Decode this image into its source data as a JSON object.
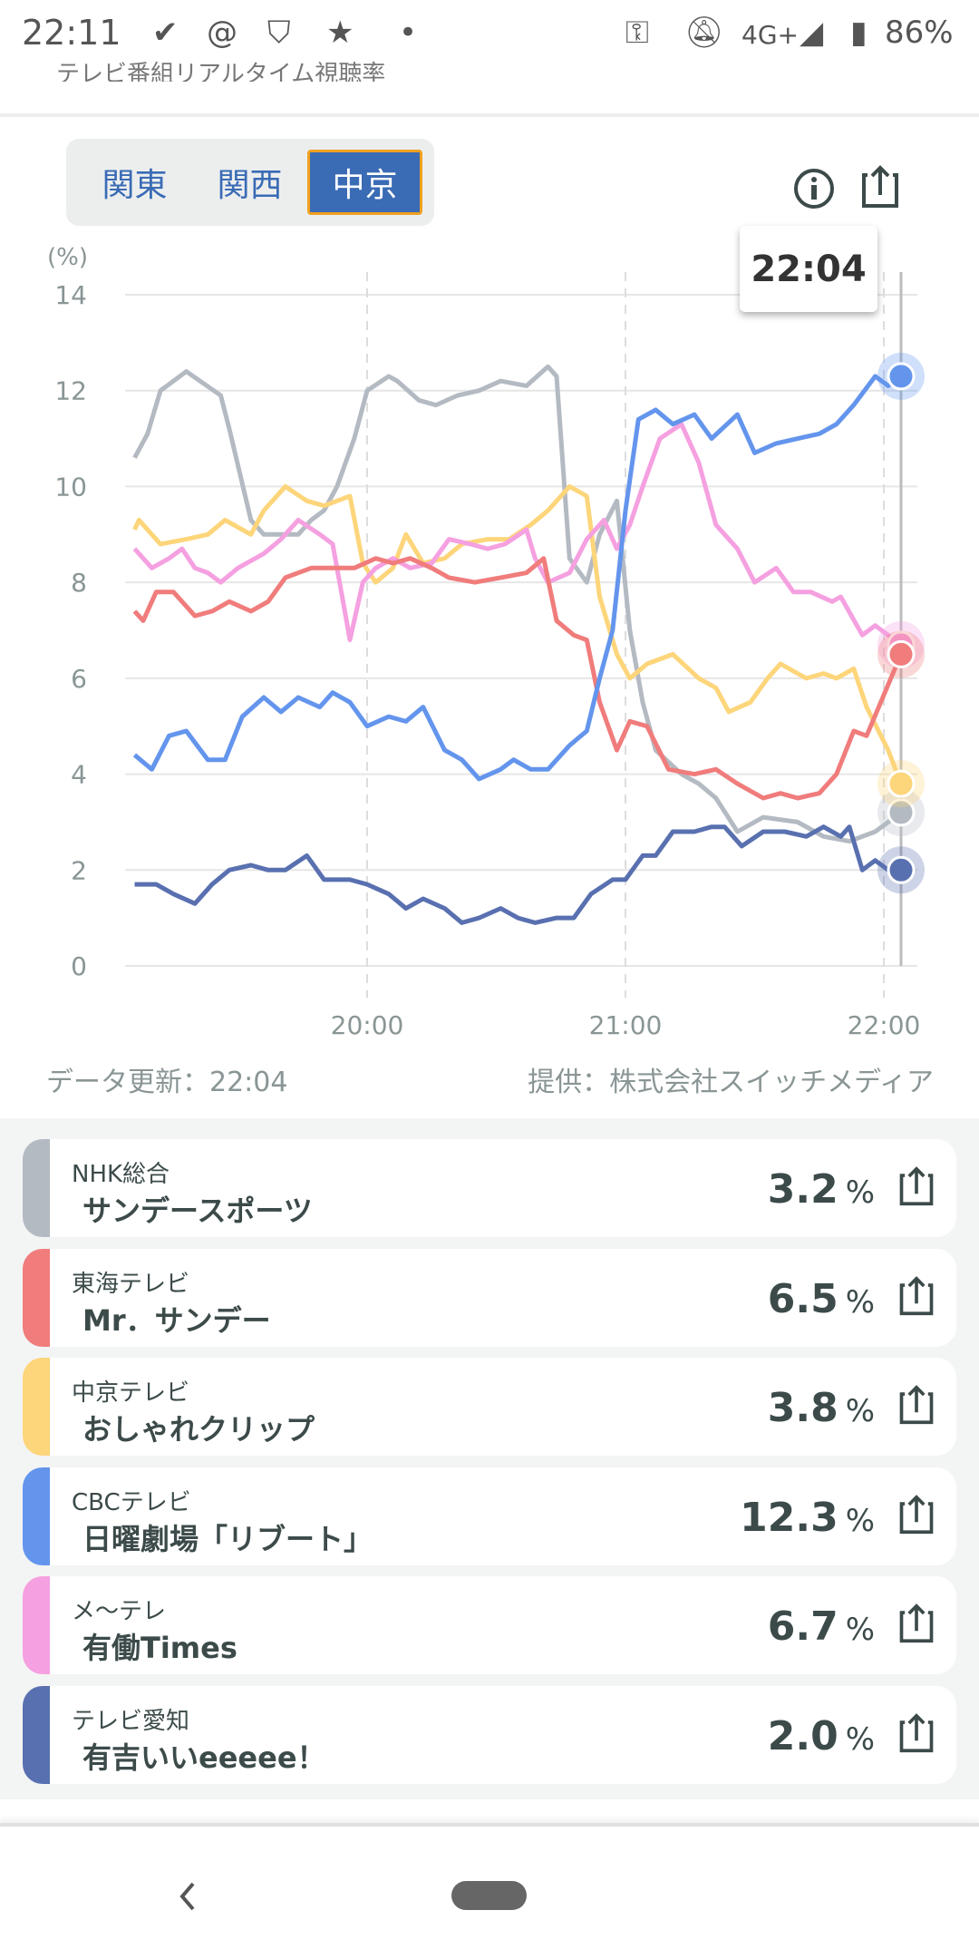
{
  "status_bar": {
    "time": "22:11",
    "network": "4G+",
    "battery": "86%"
  },
  "app": {
    "title": "テレビ番組リアルタイム視聴率"
  },
  "regions": [
    {
      "label": "関東",
      "active": false
    },
    {
      "label": "関西",
      "active": false
    },
    {
      "label": "中京",
      "active": true
    }
  ],
  "tooltip": {
    "time": "22:04"
  },
  "footer": {
    "updated": "データ更新：22:04",
    "provider": "提供：株式会社スイッチメディア"
  },
  "chart_data": {
    "type": "line",
    "ylabel": "(%)",
    "ylim": [
      0,
      14
    ],
    "yticks": [
      "0",
      "2",
      "4",
      "6",
      "8",
      "10",
      "12",
      "14"
    ],
    "x_unit": "minutes since 19:00",
    "xticks": [
      {
        "t": 60,
        "label": "20:00"
      },
      {
        "t": 120,
        "label": "21:00"
      },
      {
        "t": 180,
        "label": "22:00"
      }
    ],
    "cursor_t": 184,
    "grid": true,
    "series": [
      {
        "name": "NHK総合",
        "color": "#b4bac2",
        "points": [
          [
            6,
            10.6
          ],
          [
            9,
            11.1
          ],
          [
            12,
            12.0
          ],
          [
            18,
            12.4
          ],
          [
            26,
            11.9
          ],
          [
            28,
            11.2
          ],
          [
            33,
            9.3
          ],
          [
            36,
            9.0
          ],
          [
            44,
            9.0
          ],
          [
            47,
            9.3
          ],
          [
            50,
            9.5
          ],
          [
            53,
            10.0
          ],
          [
            57,
            11.0
          ],
          [
            60,
            12.0
          ],
          [
            65,
            12.3
          ],
          [
            67,
            12.2
          ],
          [
            72,
            11.8
          ],
          [
            76,
            11.7
          ],
          [
            81,
            11.9
          ],
          [
            86,
            12.0
          ],
          [
            91,
            12.2
          ],
          [
            97,
            12.1
          ],
          [
            102,
            12.5
          ],
          [
            104,
            12.3
          ],
          [
            107,
            8.5
          ],
          [
            111,
            8.0
          ],
          [
            114,
            9.0
          ],
          [
            118,
            9.7
          ],
          [
            121,
            7.0
          ],
          [
            124,
            5.5
          ],
          [
            127,
            4.5
          ],
          [
            133,
            4.0
          ],
          [
            137,
            3.8
          ],
          [
            141,
            3.5
          ],
          [
            146,
            2.8
          ],
          [
            152,
            3.1
          ],
          [
            160,
            3.0
          ],
          [
            166,
            2.7
          ],
          [
            172,
            2.6
          ],
          [
            178,
            2.8
          ],
          [
            184,
            3.2
          ]
        ]
      },
      {
        "name": "中京テレビ",
        "color": "#fdd57a",
        "points": [
          [
            6,
            9.1
          ],
          [
            7,
            9.3
          ],
          [
            12,
            8.8
          ],
          [
            18,
            8.9
          ],
          [
            23,
            9.0
          ],
          [
            27,
            9.3
          ],
          [
            33,
            9.0
          ],
          [
            36,
            9.5
          ],
          [
            41,
            10.0
          ],
          [
            46,
            9.7
          ],
          [
            50,
            9.6
          ],
          [
            56,
            9.8
          ],
          [
            59,
            8.4
          ],
          [
            62,
            8.0
          ],
          [
            66,
            8.3
          ],
          [
            69,
            9.0
          ],
          [
            73,
            8.4
          ],
          [
            78,
            8.5
          ],
          [
            82,
            8.8
          ],
          [
            88,
            8.9
          ],
          [
            93,
            8.9
          ],
          [
            98,
            9.2
          ],
          [
            102,
            9.5
          ],
          [
            107,
            10.0
          ],
          [
            111,
            9.8
          ],
          [
            114,
            7.7
          ],
          [
            118,
            6.5
          ],
          [
            121,
            6.0
          ],
          [
            125,
            6.3
          ],
          [
            131,
            6.5
          ],
          [
            137,
            6.0
          ],
          [
            141,
            5.8
          ],
          [
            144,
            5.3
          ],
          [
            149,
            5.5
          ],
          [
            153,
            6.0
          ],
          [
            156,
            6.3
          ],
          [
            162,
            6.0
          ],
          [
            166,
            6.1
          ],
          [
            169,
            6.0
          ],
          [
            173,
            6.2
          ],
          [
            176,
            5.4
          ],
          [
            181,
            4.5
          ],
          [
            184,
            3.8
          ]
        ]
      },
      {
        "name": "メ〜テレ",
        "color": "#f5a0e0",
        "points": [
          [
            6,
            8.7
          ],
          [
            10,
            8.3
          ],
          [
            14,
            8.5
          ],
          [
            17,
            8.7
          ],
          [
            20,
            8.3
          ],
          [
            23,
            8.2
          ],
          [
            26,
            8.0
          ],
          [
            30,
            8.3
          ],
          [
            36,
            8.6
          ],
          [
            40,
            8.9
          ],
          [
            44,
            9.3
          ],
          [
            49,
            9.0
          ],
          [
            52,
            8.8
          ],
          [
            55,
            7.3
          ],
          [
            56,
            6.8
          ],
          [
            59,
            8.0
          ],
          [
            62,
            8.3
          ],
          [
            66,
            8.5
          ],
          [
            70,
            8.3
          ],
          [
            75,
            8.4
          ],
          [
            79,
            8.9
          ],
          [
            84,
            8.8
          ],
          [
            88,
            8.7
          ],
          [
            92,
            8.8
          ],
          [
            97,
            9.1
          ],
          [
            99,
            8.5
          ],
          [
            102,
            8.0
          ],
          [
            107,
            8.2
          ],
          [
            111,
            8.9
          ],
          [
            115,
            9.3
          ],
          [
            118,
            8.7
          ],
          [
            121,
            9.2
          ],
          [
            124,
            10.0
          ],
          [
            128,
            11.0
          ],
          [
            133,
            11.3
          ],
          [
            137,
            10.5
          ],
          [
            141,
            9.2
          ],
          [
            146,
            8.7
          ],
          [
            150,
            8.0
          ],
          [
            155,
            8.3
          ],
          [
            159,
            7.8
          ],
          [
            163,
            7.8
          ],
          [
            168,
            7.6
          ],
          [
            170,
            7.7
          ],
          [
            175,
            6.9
          ],
          [
            178,
            7.1
          ],
          [
            184,
            6.7
          ]
        ]
      },
      {
        "name": "東海テレビ",
        "color": "#f07c7c",
        "points": [
          [
            6,
            7.4
          ],
          [
            8,
            7.2
          ],
          [
            11,
            7.8
          ],
          [
            15,
            7.8
          ],
          [
            20,
            7.3
          ],
          [
            24,
            7.4
          ],
          [
            28,
            7.6
          ],
          [
            33,
            7.4
          ],
          [
            37,
            7.6
          ],
          [
            41,
            8.1
          ],
          [
            47,
            8.3
          ],
          [
            53,
            8.3
          ],
          [
            57,
            8.3
          ],
          [
            62,
            8.5
          ],
          [
            66,
            8.4
          ],
          [
            70,
            8.5
          ],
          [
            75,
            8.3
          ],
          [
            79,
            8.1
          ],
          [
            85,
            8.0
          ],
          [
            91,
            8.1
          ],
          [
            97,
            8.2
          ],
          [
            101,
            8.5
          ],
          [
            104,
            7.2
          ],
          [
            108,
            6.9
          ],
          [
            111,
            6.8
          ],
          [
            114,
            5.5
          ],
          [
            118,
            4.5
          ],
          [
            121,
            5.1
          ],
          [
            125,
            5.0
          ],
          [
            130,
            4.1
          ],
          [
            136,
            4.0
          ],
          [
            141,
            4.1
          ],
          [
            146,
            3.8
          ],
          [
            152,
            3.5
          ],
          [
            156,
            3.6
          ],
          [
            160,
            3.5
          ],
          [
            165,
            3.6
          ],
          [
            169,
            4.0
          ],
          [
            173,
            4.9
          ],
          [
            176,
            4.8
          ],
          [
            184,
            6.5
          ]
        ]
      },
      {
        "name": "CBCテレビ",
        "color": "#6495ed",
        "points": [
          [
            6,
            4.4
          ],
          [
            10,
            4.1
          ],
          [
            14,
            4.8
          ],
          [
            18,
            4.9
          ],
          [
            23,
            4.3
          ],
          [
            27,
            4.3
          ],
          [
            31,
            5.2
          ],
          [
            36,
            5.6
          ],
          [
            40,
            5.3
          ],
          [
            44,
            5.6
          ],
          [
            49,
            5.4
          ],
          [
            52,
            5.7
          ],
          [
            56,
            5.5
          ],
          [
            60,
            5.0
          ],
          [
            65,
            5.2
          ],
          [
            69,
            5.1
          ],
          [
            73,
            5.4
          ],
          [
            78,
            4.5
          ],
          [
            82,
            4.3
          ],
          [
            86,
            3.9
          ],
          [
            91,
            4.1
          ],
          [
            94,
            4.3
          ],
          [
            98,
            4.1
          ],
          [
            102,
            4.1
          ],
          [
            107,
            4.6
          ],
          [
            111,
            4.9
          ],
          [
            114,
            6.0
          ],
          [
            117,
            7.0
          ],
          [
            120,
            9.5
          ],
          [
            123,
            11.4
          ],
          [
            127,
            11.6
          ],
          [
            131,
            11.3
          ],
          [
            136,
            11.5
          ],
          [
            140,
            11.0
          ],
          [
            146,
            11.5
          ],
          [
            150,
            10.7
          ],
          [
            155,
            10.9
          ],
          [
            160,
            11.0
          ],
          [
            165,
            11.1
          ],
          [
            169,
            11.3
          ],
          [
            173,
            11.7
          ],
          [
            178,
            12.3
          ],
          [
            181,
            12.1
          ],
          [
            184,
            12.3
          ]
        ]
      },
      {
        "name": "テレビ愛知",
        "color": "#5970b0",
        "points": [
          [
            6,
            1.7
          ],
          [
            11,
            1.7
          ],
          [
            15,
            1.5
          ],
          [
            20,
            1.3
          ],
          [
            24,
            1.7
          ],
          [
            28,
            2.0
          ],
          [
            33,
            2.1
          ],
          [
            37,
            2.0
          ],
          [
            41,
            2.0
          ],
          [
            46,
            2.3
          ],
          [
            50,
            1.8
          ],
          [
            56,
            1.8
          ],
          [
            60,
            1.7
          ],
          [
            65,
            1.5
          ],
          [
            69,
            1.2
          ],
          [
            73,
            1.4
          ],
          [
            78,
            1.2
          ],
          [
            82,
            0.9
          ],
          [
            86,
            1.0
          ],
          [
            91,
            1.2
          ],
          [
            95,
            1.0
          ],
          [
            99,
            0.9
          ],
          [
            104,
            1.0
          ],
          [
            108,
            1.0
          ],
          [
            112,
            1.5
          ],
          [
            117,
            1.8
          ],
          [
            120,
            1.8
          ],
          [
            124,
            2.3
          ],
          [
            127,
            2.3
          ],
          [
            131,
            2.8
          ],
          [
            136,
            2.8
          ],
          [
            140,
            2.9
          ],
          [
            143,
            2.9
          ],
          [
            147,
            2.5
          ],
          [
            152,
            2.8
          ],
          [
            157,
            2.8
          ],
          [
            162,
            2.7
          ],
          [
            166,
            2.9
          ],
          [
            170,
            2.7
          ],
          [
            172,
            2.9
          ],
          [
            175,
            2.0
          ],
          [
            178,
            2.2
          ],
          [
            181,
            2.0
          ],
          [
            184,
            2.0
          ]
        ]
      }
    ]
  },
  "ratings": [
    {
      "station": "NHK総合",
      "program": "サンデースポーツ",
      "value": "3.2",
      "unit": "%",
      "color": "#b4bac2"
    },
    {
      "station": "東海テレビ",
      "program": "Mr．サンデー",
      "value": "6.5",
      "unit": "%",
      "color": "#f07c7c"
    },
    {
      "station": "中京テレビ",
      "program": "おしゃれクリップ",
      "value": "3.8",
      "unit": "%",
      "color": "#fdd57a"
    },
    {
      "station": "CBCテレビ",
      "program": "日曜劇場「リブート」",
      "value": "12.3",
      "unit": "%",
      "color": "#6495ed"
    },
    {
      "station": "メ〜テレ",
      "program": "有働Times",
      "value": "6.7",
      "unit": "%",
      "color": "#f5a0e0"
    },
    {
      "station": "テレビ愛知",
      "program": "有吉いいeeeee！",
      "value": "2.0",
      "unit": "%",
      "color": "#5970b0"
    }
  ]
}
